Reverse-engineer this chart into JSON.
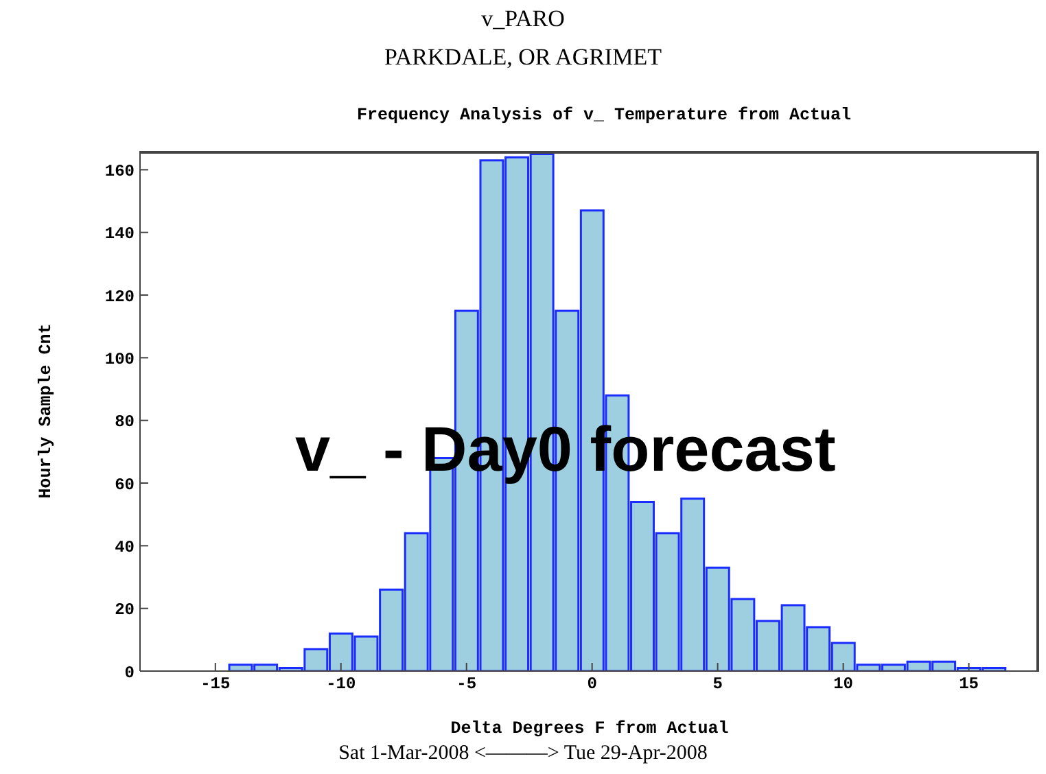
{
  "chart_data": {
    "type": "histogram",
    "title": "v_PARO",
    "subtitle": "PARKDALE, OR AGRIMET",
    "annotations": [
      "Frequency Analysis of v_ Temperature from Actual",
      "v_ - Day0 forecast",
      "Sat 1-Mar-2008 <———> Tue 29-Apr-2008"
    ],
    "xlabel": "Delta Degrees F from Actual",
    "ylabel": "Hourly Sample Cnt",
    "bins": [
      -14.5,
      -13.5,
      -12.5,
      -11.5,
      -10.5,
      -9.5,
      -8.5,
      -7.5,
      -6.5,
      -5.5,
      -4.5,
      -3.5,
      -2.5,
      -1.5,
      -0.5,
      0.5,
      1.5,
      2.5,
      3.5,
      4.5,
      5.5,
      6.5,
      7.5,
      8.5,
      9.5,
      10.5,
      11.5,
      12.5,
      13.5,
      14.5,
      15.5,
      16.5
    ],
    "values": [
      2,
      2,
      1,
      7,
      12,
      11,
      26,
      44,
      68,
      115,
      163,
      164,
      165,
      115,
      147,
      88,
      54,
      44,
      55,
      33,
      23,
      16,
      21,
      14,
      9,
      2,
      2,
      3,
      3,
      1,
      1
    ],
    "color": "#9ecfe0",
    "xlim": [
      -18,
      17.8
    ],
    "xticks": [
      -15,
      -10,
      -5,
      0,
      5,
      10,
      15
    ],
    "ylim": [
      0,
      166
    ],
    "yticks": [
      0,
      20,
      40,
      60,
      80,
      100,
      120,
      140,
      160
    ],
    "grid": false,
    "legend": false
  }
}
